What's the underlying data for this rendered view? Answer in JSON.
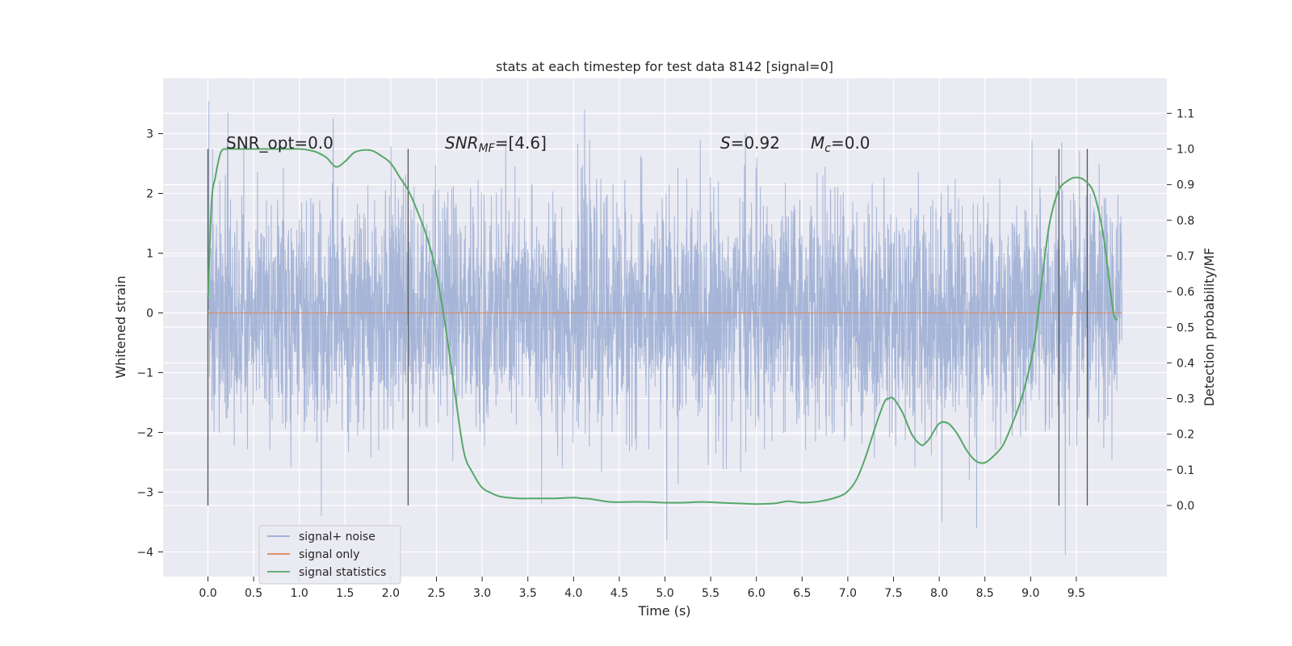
{
  "chart_data": {
    "type": "line",
    "title": "stats at each timestep for test data 8142 [signal=0]",
    "xlabel": "Time (s)",
    "ylabel": "Whitened strain",
    "ylabel_right": "Detection probability/MF",
    "xlim": [
      -0.5,
      10.5
    ],
    "ylim": [
      -4.5,
      3.9
    ],
    "ylim_right": [
      -0.2,
      1.2
    ],
    "x_ticks": [
      "0.0",
      "0.5",
      "1.0",
      "1.5",
      "2.0",
      "2.5",
      "3.0",
      "3.5",
      "4.0",
      "4.5",
      "5.0",
      "5.5",
      "6.0",
      "6.5",
      "7.0",
      "7.5",
      "8.0",
      "8.5",
      "9.0",
      "9.5"
    ],
    "y_ticks": [
      "3",
      "2",
      "1",
      "0",
      "−1",
      "−2",
      "−3",
      "−4"
    ],
    "y_ticks_right": [
      "1.1",
      "1.0",
      "0.9",
      "0.8",
      "0.7",
      "0.6",
      "0.5",
      "0.4",
      "0.3",
      "0.2",
      "0.1",
      "0.0"
    ],
    "grid": true,
    "legend_position": "lower-left",
    "annotations": {
      "snr_opt": "SNR_opt=0.0",
      "snr_mf_main": "SNR",
      "snr_mf_sub": "MF",
      "snr_mf_value": "=[4.6]",
      "s_symbol": "S",
      "s_value": "=0.92",
      "mc_main": "M",
      "mc_sub": "c",
      "mc_value": "=0.0"
    },
    "vertical_markers": [
      0.0,
      2.19,
      9.31,
      9.62
    ],
    "series": [
      {
        "name": "signal+ noise",
        "axis": "left",
        "color": "#9aabd2",
        "description_range": [
          0.0,
          10.0
        ],
        "amplitude_typical": 1.2,
        "peaks": [
          [
            0.01,
            3.55
          ],
          [
            0.05,
            2.75
          ],
          [
            0.22,
            3.35
          ],
          [
            1.37,
            3.25
          ],
          [
            4.12,
            3.4
          ],
          [
            5.88,
            3.0
          ],
          [
            9.34,
            2.85
          ],
          [
            5.02,
            -3.8
          ],
          [
            9.38,
            -4.05
          ],
          [
            8.03,
            -3.5
          ],
          [
            8.41,
            -3.6
          ],
          [
            3.65,
            -3.2
          ],
          [
            1.24,
            -3.4
          ]
        ]
      },
      {
        "name": "signal only",
        "axis": "left",
        "color": "#dd8452",
        "x": [
          0.0,
          10.0
        ],
        "values": [
          0.0,
          0.0
        ]
      },
      {
        "name": "signal statistics",
        "axis": "right",
        "color": "#55a868",
        "x": [
          0.0,
          0.04,
          0.08,
          0.14,
          0.2,
          0.3,
          0.5,
          0.8,
          1.0,
          1.1,
          1.2,
          1.3,
          1.4,
          1.5,
          1.6,
          1.7,
          1.8,
          1.9,
          2.0,
          2.1,
          2.2,
          2.3,
          2.4,
          2.5,
          2.6,
          2.7,
          2.8,
          2.9,
          3.0,
          3.1,
          3.2,
          3.4,
          3.6,
          3.8,
          4.0,
          4.1,
          4.2,
          4.4,
          4.6,
          4.8,
          5.0,
          5.2,
          5.4,
          5.6,
          5.8,
          6.0,
          6.2,
          6.35,
          6.5,
          6.7,
          6.9,
          7.0,
          7.1,
          7.2,
          7.3,
          7.4,
          7.45,
          7.5,
          7.6,
          7.7,
          7.8,
          7.85,
          7.9,
          8.0,
          8.1,
          8.2,
          8.3,
          8.4,
          8.5,
          8.6,
          8.7,
          8.8,
          8.9,
          9.0,
          9.05,
          9.1,
          9.2,
          9.3,
          9.4,
          9.5,
          9.6,
          9.7,
          9.8,
          9.9,
          9.95
        ],
        "values": [
          0.58,
          0.85,
          0.92,
          0.99,
          1.0,
          1.0,
          1.0,
          1.0,
          1.0,
          0.997,
          0.99,
          0.975,
          0.95,
          0.965,
          0.99,
          0.997,
          0.995,
          0.98,
          0.96,
          0.92,
          0.88,
          0.82,
          0.75,
          0.65,
          0.5,
          0.32,
          0.15,
          0.09,
          0.05,
          0.035,
          0.025,
          0.02,
          0.02,
          0.02,
          0.022,
          0.02,
          0.018,
          0.01,
          0.01,
          0.01,
          0.008,
          0.008,
          0.01,
          0.008,
          0.006,
          0.004,
          0.006,
          0.012,
          0.008,
          0.012,
          0.025,
          0.04,
          0.075,
          0.14,
          0.22,
          0.29,
          0.3,
          0.3,
          0.26,
          0.2,
          0.17,
          0.175,
          0.19,
          0.23,
          0.23,
          0.2,
          0.155,
          0.125,
          0.12,
          0.14,
          0.17,
          0.23,
          0.3,
          0.4,
          0.47,
          0.58,
          0.78,
          0.88,
          0.91,
          0.92,
          0.91,
          0.87,
          0.75,
          0.55,
          0.52
        ]
      }
    ]
  }
}
